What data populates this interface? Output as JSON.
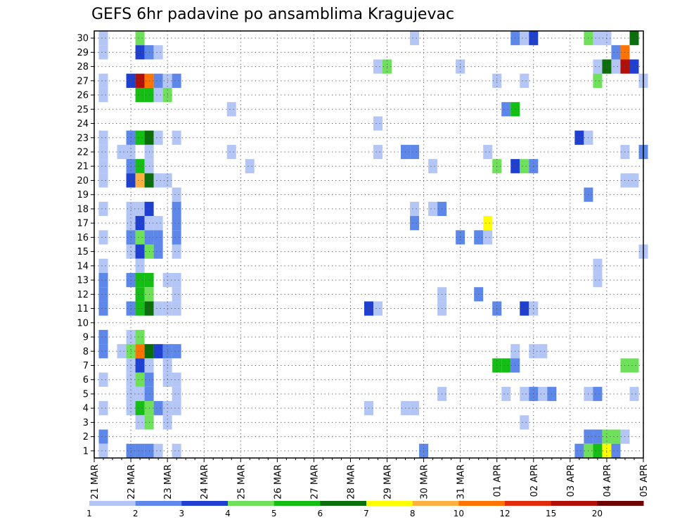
{
  "chart_data": {
    "type": "heatmap",
    "title": "GEFS 6hr padavine po ansamblima Kragujevac",
    "xlabel": "",
    "ylabel": "",
    "x_tick_labels": [
      "21 MAR",
      "22 MAR",
      "23 MAR",
      "24 MAR",
      "25 MAR",
      "26 MAR",
      "27 MAR",
      "28 MAR",
      "29 MAR",
      "30 MAR",
      "31 MAR",
      "01 APR",
      "02 APR",
      "03 APR",
      "04 APR",
      "05 APR"
    ],
    "x_range_days": [
      0,
      15
    ],
    "y_tick_labels": [
      "1",
      "2",
      "3",
      "4",
      "5",
      "6",
      "7",
      "8",
      "9",
      "10",
      "11",
      "12",
      "13",
      "14",
      "15",
      "16",
      "17",
      "18",
      "19",
      "20",
      "21",
      "22",
      "23",
      "24",
      "25",
      "26",
      "27",
      "28",
      "29",
      "30"
    ],
    "y_range_members": [
      1,
      30
    ],
    "time_step_hours": 6,
    "grid": true,
    "colorbar": {
      "levels": [
        "1",
        "2",
        "3",
        "4",
        "5",
        "6",
        "7",
        "8",
        "10",
        "12",
        "15",
        "20"
      ],
      "colors": [
        "#b4c6f5",
        "#5d87e8",
        "#1e3fcf",
        "#6fe05a",
        "#14be14",
        "#0a6e0a",
        "#ffff00",
        "#ffb040",
        "#ff7400",
        "#df2c0a",
        "#b01008",
        "#6e0000"
      ]
    },
    "cells": [
      {
        "member": 30,
        "x": 0.25,
        "class": 1
      },
      {
        "member": 30,
        "x": 1.25,
        "class": 4
      },
      {
        "member": 30,
        "x": 8.75,
        "class": 1
      },
      {
        "member": 30,
        "x": 11.5,
        "class": 2
      },
      {
        "member": 30,
        "x": 11.75,
        "class": 1
      },
      {
        "member": 30,
        "x": 12.0,
        "class": 3
      },
      {
        "member": 30,
        "x": 13.5,
        "class": 4
      },
      {
        "member": 30,
        "x": 13.75,
        "class": 1
      },
      {
        "member": 30,
        "x": 14.0,
        "class": 1
      },
      {
        "member": 30,
        "x": 14.75,
        "class": 6
      },
      {
        "member": 29,
        "x": 0.25,
        "class": 1
      },
      {
        "member": 29,
        "x": 1.25,
        "class": 3
      },
      {
        "member": 29,
        "x": 1.5,
        "class": 2
      },
      {
        "member": 29,
        "x": 1.75,
        "class": 1
      },
      {
        "member": 29,
        "x": 14.25,
        "class": 2
      },
      {
        "member": 29,
        "x": 14.5,
        "class": 9
      },
      {
        "member": 28,
        "x": 7.75,
        "class": 1
      },
      {
        "member": 28,
        "x": 8.0,
        "class": 4
      },
      {
        "member": 28,
        "x": 10.0,
        "class": 1
      },
      {
        "member": 28,
        "x": 13.75,
        "class": 1
      },
      {
        "member": 28,
        "x": 14.0,
        "class": 6
      },
      {
        "member": 28,
        "x": 14.25,
        "class": 1
      },
      {
        "member": 28,
        "x": 14.5,
        "class": 11
      },
      {
        "member": 28,
        "x": 14.75,
        "class": 3
      },
      {
        "member": 27,
        "x": 0.25,
        "class": 1
      },
      {
        "member": 27,
        "x": 1.0,
        "class": 3
      },
      {
        "member": 27,
        "x": 1.25,
        "class": 11
      },
      {
        "member": 27,
        "x": 1.5,
        "class": 9
      },
      {
        "member": 27,
        "x": 1.75,
        "class": 2
      },
      {
        "member": 27,
        "x": 2.0,
        "class": 1
      },
      {
        "member": 27,
        "x": 2.25,
        "class": 2
      },
      {
        "member": 27,
        "x": 11.0,
        "class": 1
      },
      {
        "member": 27,
        "x": 11.75,
        "class": 1
      },
      {
        "member": 27,
        "x": 13.75,
        "class": 4
      },
      {
        "member": 27,
        "x": 15.0,
        "class": 1
      },
      {
        "member": 26,
        "x": 0.25,
        "class": 1
      },
      {
        "member": 26,
        "x": 1.25,
        "class": 5
      },
      {
        "member": 26,
        "x": 1.5,
        "class": 5
      },
      {
        "member": 26,
        "x": 1.75,
        "class": 1
      },
      {
        "member": 26,
        "x": 2.0,
        "class": 4
      },
      {
        "member": 25,
        "x": 3.75,
        "class": 1
      },
      {
        "member": 25,
        "x": 11.25,
        "class": 2
      },
      {
        "member": 25,
        "x": 11.5,
        "class": 5
      },
      {
        "member": 24,
        "x": 7.75,
        "class": 1
      },
      {
        "member": 23,
        "x": 0.25,
        "class": 1
      },
      {
        "member": 23,
        "x": 1.0,
        "class": 2
      },
      {
        "member": 23,
        "x": 1.25,
        "class": 5
      },
      {
        "member": 23,
        "x": 1.5,
        "class": 6
      },
      {
        "member": 23,
        "x": 1.75,
        "class": 1
      },
      {
        "member": 23,
        "x": 2.25,
        "class": 1
      },
      {
        "member": 23,
        "x": 13.25,
        "class": 3
      },
      {
        "member": 23,
        "x": 13.5,
        "class": 1
      },
      {
        "member": 22,
        "x": 0.25,
        "class": 1
      },
      {
        "member": 22,
        "x": 0.75,
        "class": 1
      },
      {
        "member": 22,
        "x": 1.0,
        "class": 1
      },
      {
        "member": 22,
        "x": 1.5,
        "class": 1
      },
      {
        "member": 22,
        "x": 3.75,
        "class": 1
      },
      {
        "member": 22,
        "x": 7.75,
        "class": 1
      },
      {
        "member": 22,
        "x": 8.5,
        "class": 2
      },
      {
        "member": 22,
        "x": 8.75,
        "class": 2
      },
      {
        "member": 22,
        "x": 10.75,
        "class": 1
      },
      {
        "member": 22,
        "x": 14.5,
        "class": 1
      },
      {
        "member": 22,
        "x": 15.0,
        "class": 2
      },
      {
        "member": 21,
        "x": 0.25,
        "class": 1
      },
      {
        "member": 21,
        "x": 1.0,
        "class": 2
      },
      {
        "member": 21,
        "x": 1.25,
        "class": 5
      },
      {
        "member": 21,
        "x": 1.5,
        "class": 1
      },
      {
        "member": 21,
        "x": 4.25,
        "class": 1
      },
      {
        "member": 21,
        "x": 9.25,
        "class": 1
      },
      {
        "member": 21,
        "x": 11.0,
        "class": 4
      },
      {
        "member": 21,
        "x": 11.5,
        "class": 3
      },
      {
        "member": 21,
        "x": 11.75,
        "class": 4
      },
      {
        "member": 21,
        "x": 12.0,
        "class": 2
      },
      {
        "member": 20,
        "x": 0.25,
        "class": 1
      },
      {
        "member": 20,
        "x": 1.0,
        "class": 3
      },
      {
        "member": 20,
        "x": 1.25,
        "class": 8
      },
      {
        "member": 20,
        "x": 1.5,
        "class": 6
      },
      {
        "member": 20,
        "x": 1.75,
        "class": 1
      },
      {
        "member": 20,
        "x": 2.0,
        "class": 1
      },
      {
        "member": 20,
        "x": 14.5,
        "class": 1
      },
      {
        "member": 20,
        "x": 14.75,
        "class": 1
      },
      {
        "member": 19,
        "x": 2.25,
        "class": 1
      },
      {
        "member": 19,
        "x": 13.5,
        "class": 2
      },
      {
        "member": 18,
        "x": 0.25,
        "class": 1
      },
      {
        "member": 18,
        "x": 1.0,
        "class": 1
      },
      {
        "member": 18,
        "x": 1.25,
        "class": 1
      },
      {
        "member": 18,
        "x": 1.5,
        "class": 3
      },
      {
        "member": 18,
        "x": 2.25,
        "class": 2
      },
      {
        "member": 18,
        "x": 8.75,
        "class": 1
      },
      {
        "member": 18,
        "x": 9.25,
        "class": 1
      },
      {
        "member": 18,
        "x": 9.5,
        "class": 2
      },
      {
        "member": 17,
        "x": 1.0,
        "class": 1
      },
      {
        "member": 17,
        "x": 1.25,
        "class": 3
      },
      {
        "member": 17,
        "x": 1.5,
        "class": 1
      },
      {
        "member": 17,
        "x": 1.75,
        "class": 1
      },
      {
        "member": 17,
        "x": 2.25,
        "class": 2
      },
      {
        "member": 17,
        "x": 8.75,
        "class": 2
      },
      {
        "member": 17,
        "x": 10.75,
        "class": 7
      },
      {
        "member": 16,
        "x": 0.25,
        "class": 1
      },
      {
        "member": 16,
        "x": 1.0,
        "class": 2
      },
      {
        "member": 16,
        "x": 1.25,
        "class": 4
      },
      {
        "member": 16,
        "x": 1.5,
        "class": 2
      },
      {
        "member": 16,
        "x": 1.75,
        "class": 2
      },
      {
        "member": 16,
        "x": 2.25,
        "class": 2
      },
      {
        "member": 16,
        "x": 10.0,
        "class": 2
      },
      {
        "member": 16,
        "x": 10.5,
        "class": 2
      },
      {
        "member": 16,
        "x": 10.75,
        "class": 1
      },
      {
        "member": 15,
        "x": 1.0,
        "class": 1
      },
      {
        "member": 15,
        "x": 1.25,
        "class": 3
      },
      {
        "member": 15,
        "x": 1.5,
        "class": 4
      },
      {
        "member": 15,
        "x": 1.75,
        "class": 2
      },
      {
        "member": 15,
        "x": 2.25,
        "class": 1
      },
      {
        "member": 15,
        "x": 15.0,
        "class": 1
      },
      {
        "member": 14,
        "x": 0.25,
        "class": 1
      },
      {
        "member": 14,
        "x": 1.25,
        "class": 1
      },
      {
        "member": 14,
        "x": 13.75,
        "class": 1
      },
      {
        "member": 13,
        "x": 0.25,
        "class": 2
      },
      {
        "member": 13,
        "x": 1.0,
        "class": 2
      },
      {
        "member": 13,
        "x": 1.25,
        "class": 5
      },
      {
        "member": 13,
        "x": 1.5,
        "class": 5
      },
      {
        "member": 13,
        "x": 2.0,
        "class": 1
      },
      {
        "member": 13,
        "x": 2.25,
        "class": 1
      },
      {
        "member": 13,
        "x": 13.75,
        "class": 1
      },
      {
        "member": 12,
        "x": 0.25,
        "class": 2
      },
      {
        "member": 12,
        "x": 1.25,
        "class": 5
      },
      {
        "member": 12,
        "x": 1.5,
        "class": 4
      },
      {
        "member": 12,
        "x": 2.25,
        "class": 1
      },
      {
        "member": 12,
        "x": 9.5,
        "class": 1
      },
      {
        "member": 12,
        "x": 10.5,
        "class": 2
      },
      {
        "member": 11,
        "x": 0.25,
        "class": 2
      },
      {
        "member": 11,
        "x": 1.0,
        "class": 2
      },
      {
        "member": 11,
        "x": 1.25,
        "class": 5
      },
      {
        "member": 11,
        "x": 1.5,
        "class": 6
      },
      {
        "member": 11,
        "x": 1.75,
        "class": 1
      },
      {
        "member": 11,
        "x": 2.0,
        "class": 1
      },
      {
        "member": 11,
        "x": 2.25,
        "class": 1
      },
      {
        "member": 11,
        "x": 7.5,
        "class": 3
      },
      {
        "member": 11,
        "x": 7.75,
        "class": 1
      },
      {
        "member": 11,
        "x": 9.5,
        "class": 1
      },
      {
        "member": 11,
        "x": 11.0,
        "class": 2
      },
      {
        "member": 11,
        "x": 11.75,
        "class": 3
      },
      {
        "member": 11,
        "x": 12.0,
        "class": 1
      },
      {
        "member": 9,
        "x": 0.25,
        "class": 2
      },
      {
        "member": 9,
        "x": 1.0,
        "class": 1
      },
      {
        "member": 9,
        "x": 1.25,
        "class": 4
      },
      {
        "member": 8,
        "x": 0.25,
        "class": 2
      },
      {
        "member": 8,
        "x": 0.75,
        "class": 1
      },
      {
        "member": 8,
        "x": 1.0,
        "class": 4
      },
      {
        "member": 8,
        "x": 1.25,
        "class": 9
      },
      {
        "member": 8,
        "x": 1.5,
        "class": 6
      },
      {
        "member": 8,
        "x": 1.75,
        "class": 3
      },
      {
        "member": 8,
        "x": 2.0,
        "class": 2
      },
      {
        "member": 8,
        "x": 2.25,
        "class": 2
      },
      {
        "member": 8,
        "x": 11.5,
        "class": 1
      },
      {
        "member": 8,
        "x": 12.0,
        "class": 1
      },
      {
        "member": 8,
        "x": 12.25,
        "class": 1
      },
      {
        "member": 7,
        "x": 1.0,
        "class": 1
      },
      {
        "member": 7,
        "x": 1.25,
        "class": 3
      },
      {
        "member": 7,
        "x": 1.5,
        "class": 1
      },
      {
        "member": 7,
        "x": 2.0,
        "class": 1
      },
      {
        "member": 7,
        "x": 11.0,
        "class": 5
      },
      {
        "member": 7,
        "x": 11.25,
        "class": 5
      },
      {
        "member": 7,
        "x": 11.5,
        "class": 2
      },
      {
        "member": 7,
        "x": 14.5,
        "class": 4
      },
      {
        "member": 7,
        "x": 14.75,
        "class": 4
      },
      {
        "member": 6,
        "x": 0.25,
        "class": 1
      },
      {
        "member": 6,
        "x": 1.0,
        "class": 1
      },
      {
        "member": 6,
        "x": 1.25,
        "class": 4
      },
      {
        "member": 6,
        "x": 1.5,
        "class": 2
      },
      {
        "member": 6,
        "x": 2.0,
        "class": 1
      },
      {
        "member": 6,
        "x": 2.25,
        "class": 1
      },
      {
        "member": 5,
        "x": 1.0,
        "class": 1
      },
      {
        "member": 5,
        "x": 1.25,
        "class": 1
      },
      {
        "member": 5,
        "x": 1.5,
        "class": 2
      },
      {
        "member": 5,
        "x": 2.25,
        "class": 1
      },
      {
        "member": 5,
        "x": 9.5,
        "class": 1
      },
      {
        "member": 5,
        "x": 11.25,
        "class": 1
      },
      {
        "member": 5,
        "x": 11.75,
        "class": 1
      },
      {
        "member": 5,
        "x": 12.0,
        "class": 2
      },
      {
        "member": 5,
        "x": 12.25,
        "class": 1
      },
      {
        "member": 5,
        "x": 12.5,
        "class": 2
      },
      {
        "member": 5,
        "x": 13.5,
        "class": 1
      },
      {
        "member": 5,
        "x": 13.75,
        "class": 2
      },
      {
        "member": 5,
        "x": 14.75,
        "class": 1
      },
      {
        "member": 4,
        "x": 0.25,
        "class": 1
      },
      {
        "member": 4,
        "x": 1.0,
        "class": 1
      },
      {
        "member": 4,
        "x": 1.25,
        "class": 5
      },
      {
        "member": 4,
        "x": 1.5,
        "class": 4
      },
      {
        "member": 4,
        "x": 1.75,
        "class": 2
      },
      {
        "member": 4,
        "x": 2.0,
        "class": 1
      },
      {
        "member": 4,
        "x": 2.25,
        "class": 1
      },
      {
        "member": 4,
        "x": 7.5,
        "class": 1
      },
      {
        "member": 4,
        "x": 8.5,
        "class": 1
      },
      {
        "member": 4,
        "x": 8.75,
        "class": 1
      },
      {
        "member": 3,
        "x": 1.25,
        "class": 1
      },
      {
        "member": 3,
        "x": 1.5,
        "class": 4
      },
      {
        "member": 3,
        "x": 2.0,
        "class": 1
      },
      {
        "member": 3,
        "x": 11.75,
        "class": 1
      },
      {
        "member": 2,
        "x": 0.25,
        "class": 2
      },
      {
        "member": 2,
        "x": 13.5,
        "class": 2
      },
      {
        "member": 2,
        "x": 13.75,
        "class": 2
      },
      {
        "member": 2,
        "x": 14.0,
        "class": 4
      },
      {
        "member": 2,
        "x": 14.25,
        "class": 4
      },
      {
        "member": 2,
        "x": 14.5,
        "class": 1
      },
      {
        "member": 1,
        "x": 0.25,
        "class": 1
      },
      {
        "member": 1,
        "x": 1.0,
        "class": 2
      },
      {
        "member": 1,
        "x": 1.25,
        "class": 2
      },
      {
        "member": 1,
        "x": 1.5,
        "class": 2
      },
      {
        "member": 1,
        "x": 1.75,
        "class": 1
      },
      {
        "member": 1,
        "x": 2.25,
        "class": 1
      },
      {
        "member": 1,
        "x": 9.0,
        "class": 2
      },
      {
        "member": 1,
        "x": 13.25,
        "class": 2
      },
      {
        "member": 1,
        "x": 13.5,
        "class": 4
      },
      {
        "member": 1,
        "x": 13.75,
        "class": 5
      },
      {
        "member": 1,
        "x": 14.0,
        "class": 7
      },
      {
        "member": 1,
        "x": 14.25,
        "class": 2
      }
    ]
  }
}
